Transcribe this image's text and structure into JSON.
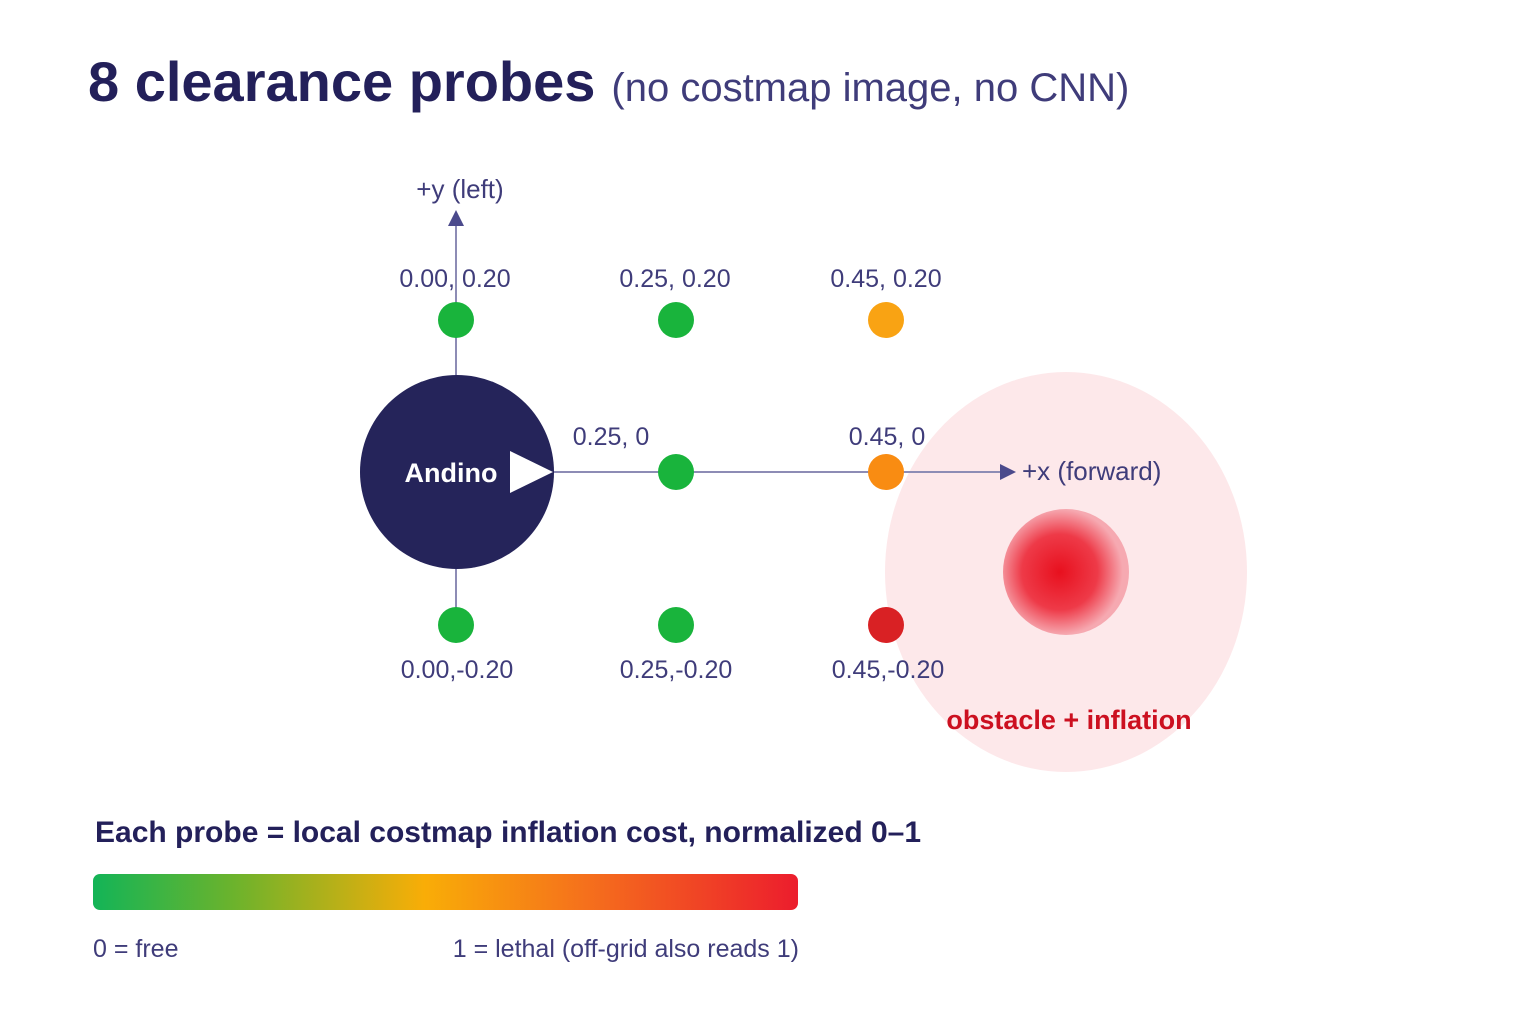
{
  "title": {
    "main": "8 clearance probes",
    "sub": "(no costmap image, no CNN)"
  },
  "axes": {
    "y_label": "+y (left)",
    "x_label": "+x (forward)"
  },
  "robot": {
    "label": "Andino"
  },
  "probes": [
    {
      "label": "0.00, 0.20",
      "color": "#19b43c"
    },
    {
      "label": "0.25, 0.20",
      "color": "#19b43c"
    },
    {
      "label": "0.45, 0.20",
      "color": "#f9a313"
    },
    {
      "label": "0.25, 0",
      "color": "#19b43c"
    },
    {
      "label": "0.45, 0",
      "color": "#f98c12"
    },
    {
      "label": "0.00,-0.20",
      "color": "#19b43c"
    },
    {
      "label": "0.25,-0.20",
      "color": "#19b43c"
    },
    {
      "label": "0.45,-0.20",
      "color": "#d92124"
    }
  ],
  "obstacle": {
    "label": "obstacle + inflation"
  },
  "legend": {
    "caption": "Each probe =  local costmap inflation cost, normalized 0–1",
    "min_label": "0 = free",
    "max_label": "1 = lethal (off-grid also reads 1)"
  }
}
